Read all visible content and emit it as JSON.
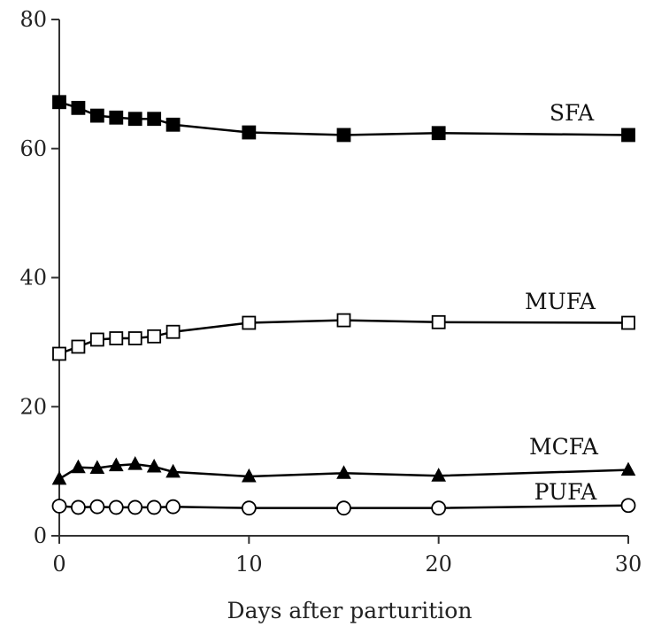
{
  "chart_data": {
    "type": "line",
    "title": "",
    "xlabel": "Days after parturition",
    "ylabel": "",
    "xlim": [
      0,
      30
    ],
    "ylim": [
      0,
      80
    ],
    "x_ticks": [
      0,
      10,
      20,
      30
    ],
    "y_ticks": [
      0,
      20,
      40,
      60,
      80
    ],
    "grid": false,
    "legend": "inline labels",
    "x": [
      0,
      1,
      2,
      3,
      4,
      5,
      6,
      10,
      15,
      20,
      30
    ],
    "series": [
      {
        "name": "SFA",
        "marker": "filled-square",
        "color": "#000000",
        "x": [
          0,
          1,
          2,
          3,
          4,
          5,
          6,
          10,
          15,
          20,
          30
        ],
        "values": [
          67.2,
          66.3,
          65.1,
          64.8,
          64.6,
          64.6,
          63.7,
          62.5,
          62.1,
          62.4,
          62.1
        ]
      },
      {
        "name": "MUFA",
        "marker": "open-square",
        "color": "#000000",
        "x": [
          0,
          1,
          2,
          3,
          4,
          5,
          6,
          10,
          15,
          20,
          30
        ],
        "values": [
          28.2,
          29.3,
          30.4,
          30.6,
          30.6,
          30.9,
          31.6,
          33.0,
          33.4,
          33.1,
          33.0
        ]
      },
      {
        "name": "MCFA",
        "marker": "filled-triangle",
        "color": "#000000",
        "x": [
          0,
          1,
          2,
          3,
          4,
          5,
          6,
          10,
          15,
          20,
          30
        ],
        "values": [
          8.8,
          10.6,
          10.5,
          10.9,
          11.1,
          10.7,
          9.9,
          9.2,
          9.7,
          9.3,
          10.2
        ]
      },
      {
        "name": "PUFA",
        "marker": "open-circle",
        "color": "#000000",
        "x": [
          0,
          1,
          2,
          3,
          4,
          5,
          6,
          10,
          15,
          20,
          30
        ],
        "values": [
          4.6,
          4.4,
          4.5,
          4.4,
          4.4,
          4.4,
          4.5,
          4.3,
          4.3,
          4.3,
          4.7
        ]
      }
    ]
  }
}
